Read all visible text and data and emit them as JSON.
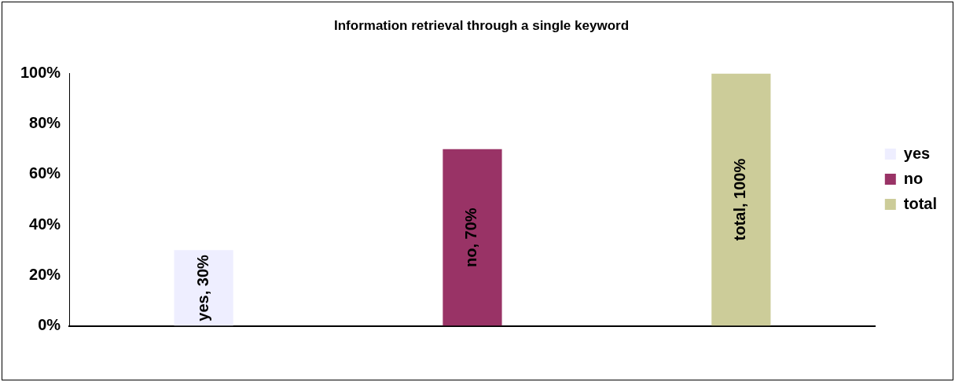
{
  "chart_data": {
    "type": "bar",
    "title": "Information retrieval through a single keyword",
    "categories": [
      null,
      null,
      null
    ],
    "series": [
      {
        "name": "yes",
        "color": "#eeeeff",
        "values": [
          30,
          null,
          null
        ],
        "value_labels": [
          "yes, 30%",
          null,
          null
        ]
      },
      {
        "name": "no",
        "color": "#993366",
        "values": [
          null,
          70,
          null
        ],
        "value_labels": [
          null,
          "no, 70%",
          null
        ]
      },
      {
        "name": "total",
        "color": "#cccc99",
        "values": [
          null,
          null,
          100
        ],
        "value_labels": [
          null,
          null,
          "total, 100%"
        ]
      }
    ],
    "ylim": [
      0,
      100
    ],
    "yticks": [
      {
        "value": 0,
        "label": "0%"
      },
      {
        "value": 20,
        "label": "20%"
      },
      {
        "value": 40,
        "label": "40%"
      },
      {
        "value": 60,
        "label": "60%"
      },
      {
        "value": 80,
        "label": "80%"
      },
      {
        "value": 100,
        "label": "100%"
      }
    ],
    "grid": false,
    "legend": "right"
  }
}
